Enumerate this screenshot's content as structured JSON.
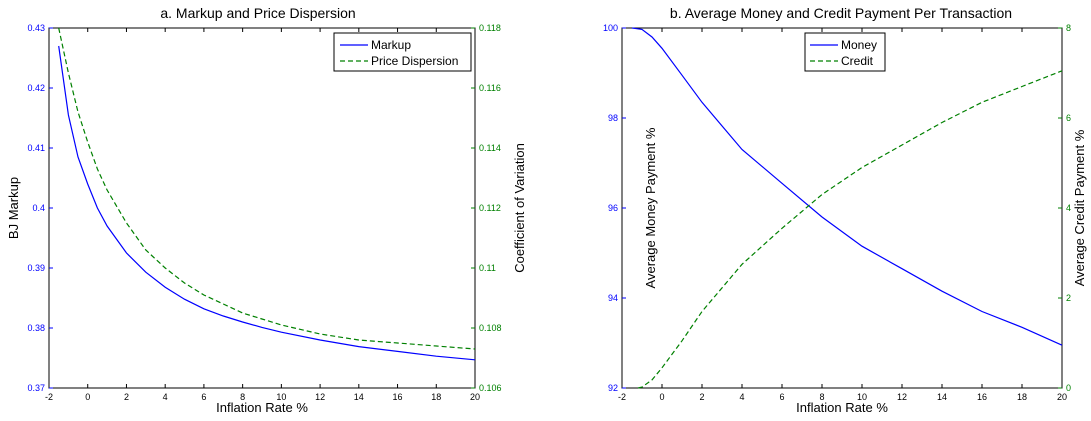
{
  "colors": {
    "left": "#0000ff",
    "right": "#008000",
    "axes": "#000000"
  },
  "chart_data": [
    {
      "type": "line",
      "title": "a. Markup and Price Dispersion",
      "xlabel": "Inflation Rate %",
      "ylabel": "BJ Markup",
      "ylabel_right": "Coefficient of Variation",
      "xlim": [
        -2,
        20
      ],
      "ylim": [
        0.37,
        0.43
      ],
      "ylim_right": [
        0.106,
        0.118
      ],
      "xticks": [
        "-2",
        "0",
        "2",
        "4",
        "6",
        "8",
        "10",
        "12",
        "14",
        "16",
        "18",
        "20"
      ],
      "yticks": [
        "0.37",
        "0.38",
        "0.39",
        "0.4",
        "0.41",
        "0.42",
        "0.43"
      ],
      "yticks_right": [
        "0.106",
        "0.108",
        "0.11",
        "0.112",
        "0.114",
        "0.116",
        "0.118"
      ],
      "legend": {
        "position": "top-right"
      },
      "grid": false,
      "series": [
        {
          "name": "Markup",
          "axis": "left",
          "style": "solid",
          "color": "#0000ff",
          "x": [
            -1.5,
            -1,
            -0.5,
            0,
            0.5,
            1,
            2,
            3,
            4,
            5,
            6,
            7,
            8,
            9,
            10,
            12,
            14,
            16,
            18,
            20
          ],
          "y": [
            0.427,
            0.4155,
            0.4085,
            0.404,
            0.4,
            0.397,
            0.3925,
            0.3893,
            0.3868,
            0.3848,
            0.3832,
            0.382,
            0.381,
            0.3801,
            0.3793,
            0.378,
            0.3769,
            0.3761,
            0.3753,
            0.3747
          ]
        },
        {
          "name": "Price Dispersion",
          "axis": "right",
          "style": "dashed",
          "color": "#008000",
          "x": [
            -1.5,
            -1,
            -0.5,
            0,
            0.5,
            1,
            2,
            3,
            4,
            5,
            6,
            7,
            8,
            9,
            10,
            12,
            14,
            16,
            18,
            20
          ],
          "y": [
            0.118,
            0.1165,
            0.1152,
            0.1142,
            0.1133,
            0.1126,
            0.1115,
            0.1106,
            0.11,
            0.1095,
            0.1091,
            0.1088,
            0.1085,
            0.1083,
            0.1081,
            0.1078,
            0.1076,
            0.1075,
            0.1074,
            0.1073
          ]
        }
      ]
    },
    {
      "type": "line",
      "title": "b. Average Money and Credit Payment Per Transaction",
      "xlabel": "Inflation Rate %",
      "ylabel": "Average Money Payment %",
      "ylabel_right": "Average Credit Payment %",
      "xlim": [
        -2,
        20
      ],
      "ylim": [
        92,
        100
      ],
      "ylim_right": [
        0,
        8
      ],
      "xticks": [
        "-2",
        "0",
        "2",
        "4",
        "6",
        "8",
        "10",
        "12",
        "14",
        "16",
        "18",
        "20"
      ],
      "yticks": [
        "92",
        "94",
        "96",
        "98",
        "100"
      ],
      "yticks_right": [
        "0",
        "2",
        "4",
        "6",
        "8"
      ],
      "legend": {
        "position": "top-center"
      },
      "grid": false,
      "series": [
        {
          "name": "Money",
          "axis": "left",
          "style": "solid",
          "color": "#0000ff",
          "x": [
            -1.5,
            -1,
            -0.5,
            0,
            1,
            2,
            4,
            6,
            8,
            10,
            12,
            14,
            16,
            18,
            20
          ],
          "y": [
            100,
            99.97,
            99.8,
            99.55,
            98.95,
            98.35,
            97.3,
            96.55,
            95.8,
            95.15,
            94.65,
            94.15,
            93.7,
            93.35,
            92.95
          ]
        },
        {
          "name": "Credit",
          "axis": "right",
          "style": "dashed",
          "color": "#008000",
          "x": [
            -1.2,
            -1,
            -0.5,
            0,
            1,
            2,
            4,
            6,
            8,
            10,
            12,
            14,
            16,
            18,
            20
          ],
          "y": [
            0,
            0.02,
            0.18,
            0.45,
            1.05,
            1.7,
            2.75,
            3.55,
            4.3,
            4.9,
            5.4,
            5.9,
            6.35,
            6.7,
            7.05
          ]
        }
      ]
    }
  ]
}
